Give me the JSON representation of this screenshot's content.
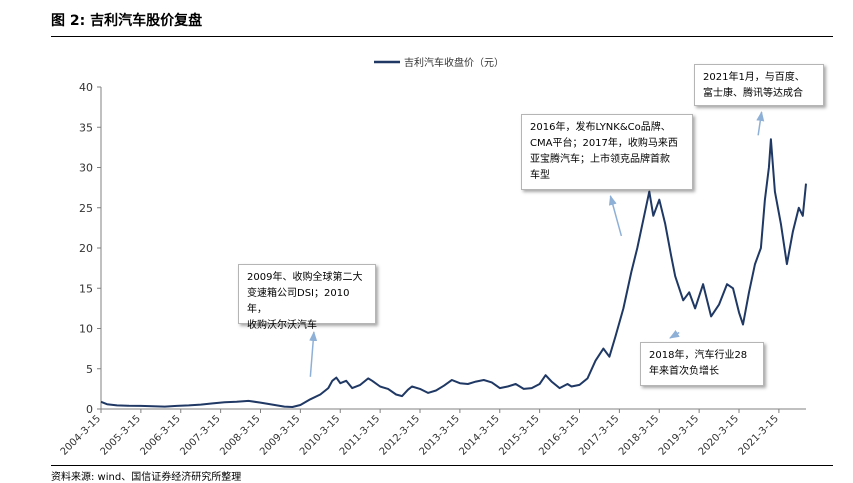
{
  "header": {
    "title": "图 2:  吉利汽车股价复盘"
  },
  "footer": {
    "source": "资料来源: wind、国信证券经济研究所整理"
  },
  "colors": {
    "line": "#1f3864",
    "arrow": "#8fb0d6",
    "axis": "#808080"
  },
  "chart_data": {
    "type": "line",
    "title": "",
    "xlabel": "",
    "ylabel": "",
    "ylim": [
      0,
      40
    ],
    "yticks": [
      0,
      5,
      10,
      15,
      20,
      25,
      30,
      35,
      40
    ],
    "xlim": [
      2004.2,
      2021.88
    ],
    "legend": {
      "label": "吉利汽车收盘价（元）",
      "position": "top-center"
    },
    "xticks": [
      {
        "t": 2004.2,
        "label": "2004-3-15"
      },
      {
        "t": 2005.2,
        "label": "2005-3-15"
      },
      {
        "t": 2006.2,
        "label": "2006-3-15"
      },
      {
        "t": 2007.2,
        "label": "2007-3-15"
      },
      {
        "t": 2008.2,
        "label": "2008-3-15"
      },
      {
        "t": 2009.2,
        "label": "2009-3-15"
      },
      {
        "t": 2010.2,
        "label": "2010-3-15"
      },
      {
        "t": 2011.2,
        "label": "2011-3-15"
      },
      {
        "t": 2012.2,
        "label": "2012-3-15"
      },
      {
        "t": 2013.2,
        "label": "2013-3-15"
      },
      {
        "t": 2014.2,
        "label": "2014-3-15"
      },
      {
        "t": 2015.2,
        "label": "2015-3-15"
      },
      {
        "t": 2016.2,
        "label": "2016-3-15"
      },
      {
        "t": 2017.2,
        "label": "2017-3-15"
      },
      {
        "t": 2018.2,
        "label": "2018-3-15"
      },
      {
        "t": 2019.2,
        "label": "2019-3-15"
      },
      {
        "t": 2020.2,
        "label": "2020-3-15"
      },
      {
        "t": 2021.2,
        "label": "2021-3-15"
      }
    ],
    "series": [
      {
        "name": "吉利汽车收盘价（元）",
        "points": [
          [
            2004.2,
            0.9
          ],
          [
            2004.35,
            0.6
          ],
          [
            2004.6,
            0.45
          ],
          [
            2004.9,
            0.4
          ],
          [
            2005.2,
            0.38
          ],
          [
            2005.5,
            0.35
          ],
          [
            2005.8,
            0.3
          ],
          [
            2006.1,
            0.38
          ],
          [
            2006.4,
            0.45
          ],
          [
            2006.7,
            0.55
          ],
          [
            2007.0,
            0.7
          ],
          [
            2007.3,
            0.85
          ],
          [
            2007.6,
            0.9
          ],
          [
            2007.9,
            1.0
          ],
          [
            2008.2,
            0.8
          ],
          [
            2008.5,
            0.55
          ],
          [
            2008.8,
            0.3
          ],
          [
            2009.0,
            0.25
          ],
          [
            2009.2,
            0.5
          ],
          [
            2009.45,
            1.2
          ],
          [
            2009.7,
            1.8
          ],
          [
            2009.9,
            2.6
          ],
          [
            2010.0,
            3.5
          ],
          [
            2010.1,
            3.9
          ],
          [
            2010.2,
            3.2
          ],
          [
            2010.35,
            3.5
          ],
          [
            2010.5,
            2.6
          ],
          [
            2010.7,
            3.0
          ],
          [
            2010.9,
            3.8
          ],
          [
            2011.0,
            3.5
          ],
          [
            2011.2,
            2.8
          ],
          [
            2011.4,
            2.5
          ],
          [
            2011.6,
            1.8
          ],
          [
            2011.75,
            1.6
          ],
          [
            2011.9,
            2.4
          ],
          [
            2012.0,
            2.8
          ],
          [
            2012.2,
            2.5
          ],
          [
            2012.4,
            2.0
          ],
          [
            2012.6,
            2.3
          ],
          [
            2012.8,
            2.9
          ],
          [
            2013.0,
            3.6
          ],
          [
            2013.2,
            3.2
          ],
          [
            2013.4,
            3.1
          ],
          [
            2013.6,
            3.4
          ],
          [
            2013.8,
            3.6
          ],
          [
            2014.0,
            3.3
          ],
          [
            2014.2,
            2.6
          ],
          [
            2014.4,
            2.8
          ],
          [
            2014.6,
            3.1
          ],
          [
            2014.8,
            2.5
          ],
          [
            2015.0,
            2.6
          ],
          [
            2015.2,
            3.1
          ],
          [
            2015.35,
            4.2
          ],
          [
            2015.5,
            3.4
          ],
          [
            2015.7,
            2.6
          ],
          [
            2015.9,
            3.1
          ],
          [
            2016.0,
            2.8
          ],
          [
            2016.2,
            3.0
          ],
          [
            2016.4,
            3.8
          ],
          [
            2016.6,
            6.0
          ],
          [
            2016.8,
            7.5
          ],
          [
            2016.95,
            6.5
          ],
          [
            2017.1,
            9.0
          ],
          [
            2017.3,
            12.5
          ],
          [
            2017.5,
            17.0
          ],
          [
            2017.65,
            20.0
          ],
          [
            2017.8,
            23.5
          ],
          [
            2017.95,
            27.0
          ],
          [
            2018.05,
            24.0
          ],
          [
            2018.2,
            26.0
          ],
          [
            2018.35,
            23.0
          ],
          [
            2018.5,
            19.0
          ],
          [
            2018.6,
            16.5
          ],
          [
            2018.8,
            13.5
          ],
          [
            2018.95,
            14.5
          ],
          [
            2019.1,
            12.5
          ],
          [
            2019.3,
            15.5
          ],
          [
            2019.5,
            11.5
          ],
          [
            2019.7,
            13.0
          ],
          [
            2019.9,
            15.5
          ],
          [
            2020.05,
            15.0
          ],
          [
            2020.2,
            12.0
          ],
          [
            2020.3,
            10.5
          ],
          [
            2020.45,
            14.5
          ],
          [
            2020.6,
            18.0
          ],
          [
            2020.75,
            20.0
          ],
          [
            2020.85,
            26.0
          ],
          [
            2020.95,
            30.0
          ],
          [
            2021.0,
            33.5
          ],
          [
            2021.1,
            27.0
          ],
          [
            2021.25,
            23.0
          ],
          [
            2021.4,
            18.0
          ],
          [
            2021.55,
            22.0
          ],
          [
            2021.7,
            25.0
          ],
          [
            2021.8,
            24.0
          ],
          [
            2021.88,
            28.0
          ]
        ]
      }
    ],
    "annotations": [
      {
        "text": "2009年、收购全球第二大\n变速箱公司DSI；2010年，\n收购沃尔沃汽车",
        "arrow_to": [
          2009.45,
          4.0
        ]
      },
      {
        "text": "2016年，发布LYNK&Co品牌、\nCMA平台；2017年，收购马来西\n亚宝腾汽车；上市领克品牌首款\n车型",
        "arrow_to": [
          2017.25,
          21.5
        ]
      },
      {
        "text": "2021年1月，与百度、\n富士康、腾讯等达成合",
        "arrow_to": [
          2020.68,
          34.0
        ]
      },
      {
        "text": "2018年，汽车行业28\n年来首次负增长",
        "arrow_to": [
          2018.7,
          9.5
        ]
      }
    ]
  }
}
